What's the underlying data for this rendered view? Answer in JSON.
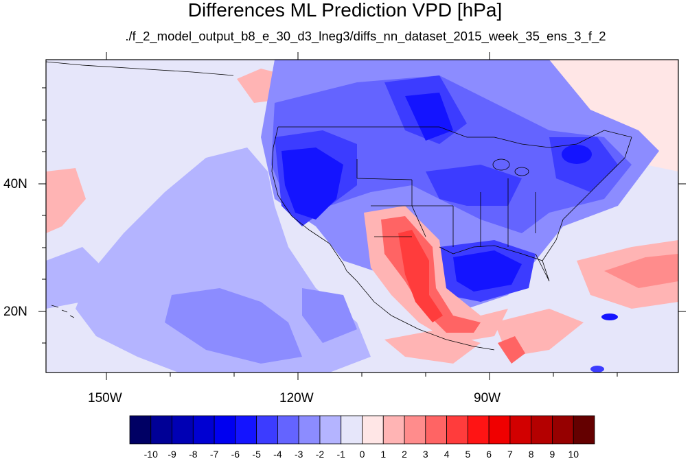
{
  "title": "Differences ML Prediction VPD [hPa]",
  "subtitle": "./f_2_model_output_b8_e_30_d3_lneg3/diffs_nn_dataset_2015_week_35_ens_3_f_2",
  "map": {
    "lon_range": [
      -160,
      -61
    ],
    "lat_range": [
      10,
      59
    ],
    "lat_ticks": [
      "40N",
      "20N"
    ],
    "lon_ticks": [
      "150W",
      "120W",
      "90W"
    ]
  },
  "colorbar": {
    "labels": [
      "-10",
      "-9",
      "-8",
      "-7",
      "-6",
      "-5",
      "-4",
      "-3",
      "-2",
      "-1",
      "0",
      "1",
      "2",
      "3",
      "4",
      "5",
      "6",
      "7",
      "8",
      "9",
      "10"
    ],
    "colors": [
      "#000064",
      "#000096",
      "#0000b4",
      "#0000d2",
      "#0000f0",
      "#1414ff",
      "#3c3cff",
      "#6464ff",
      "#8c8cff",
      "#b4b4ff",
      "#e6e6fa",
      "#ffe6e6",
      "#ffb4b4",
      "#ff8c8c",
      "#ff6464",
      "#ff3c3c",
      "#ff1414",
      "#f00000",
      "#d20000",
      "#b40000",
      "#960000",
      "#640000"
    ]
  }
}
